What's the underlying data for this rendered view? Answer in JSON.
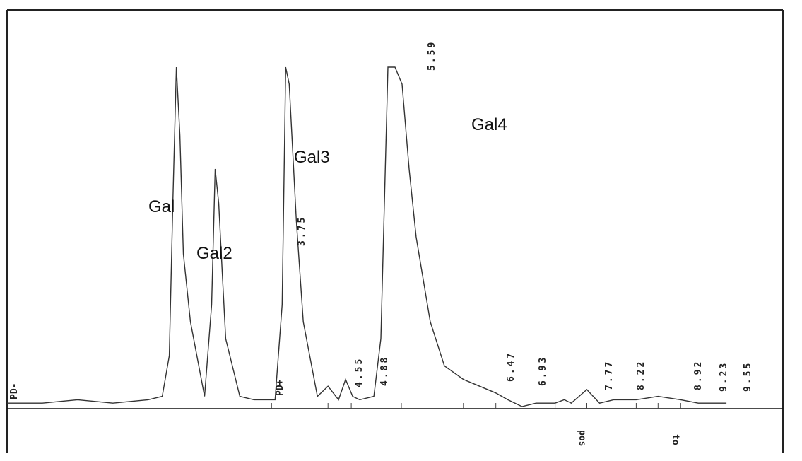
{
  "chart_data": {
    "type": "line",
    "title": "",
    "xlabel": "",
    "ylabel": "",
    "xlim": [
      0,
      11
    ],
    "ylim": [
      0,
      100
    ],
    "grid": false,
    "series": [
      {
        "name": "",
        "x": [
          0.0,
          0.5,
          1.0,
          1.5,
          2.0,
          2.2,
          2.3,
          2.35,
          2.4,
          2.45,
          2.5,
          2.6,
          2.8,
          2.9,
          2.95,
          3.0,
          3.05,
          3.1,
          3.3,
          3.5,
          3.8,
          3.9,
          3.95,
          4.0,
          4.05,
          4.1,
          4.2,
          4.4,
          4.55,
          4.7,
          4.8,
          4.9,
          5.0,
          5.2,
          5.3,
          5.4,
          5.5,
          5.6,
          5.7,
          5.8,
          6.0,
          6.2,
          6.47,
          6.7,
          6.93,
          7.1,
          7.3,
          7.5,
          7.77,
          7.9,
          8.0,
          8.22,
          8.4,
          8.6,
          8.92,
          9.23,
          9.55,
          9.8,
          10.2
        ],
        "y": [
          1,
          1,
          2,
          1,
          2,
          3,
          15,
          60,
          100,
          80,
          45,
          25,
          3,
          30,
          70,
          60,
          40,
          20,
          3,
          2,
          2,
          30,
          100,
          95,
          75,
          55,
          25,
          3,
          6,
          2,
          8,
          3,
          2,
          3,
          20,
          100,
          100,
          95,
          70,
          50,
          25,
          12,
          8,
          6,
          4,
          2,
          0,
          1,
          1,
          2,
          1,
          5,
          1,
          2,
          2,
          3,
          2,
          1,
          1
        ]
      }
    ],
    "peak_names": [
      "Gal",
      "Gal2",
      "Gal3",
      "Gal4"
    ],
    "rt_labels": [
      "3.75",
      "4.55",
      "4.88",
      "5.59",
      "6.47",
      "6.93",
      "7.77",
      "8.22",
      "8.92",
      "9.23",
      "9.55"
    ],
    "marker_labels": [
      "PD-",
      "PD+"
    ],
    "bottom_labels": [
      "pos",
      "to"
    ]
  }
}
